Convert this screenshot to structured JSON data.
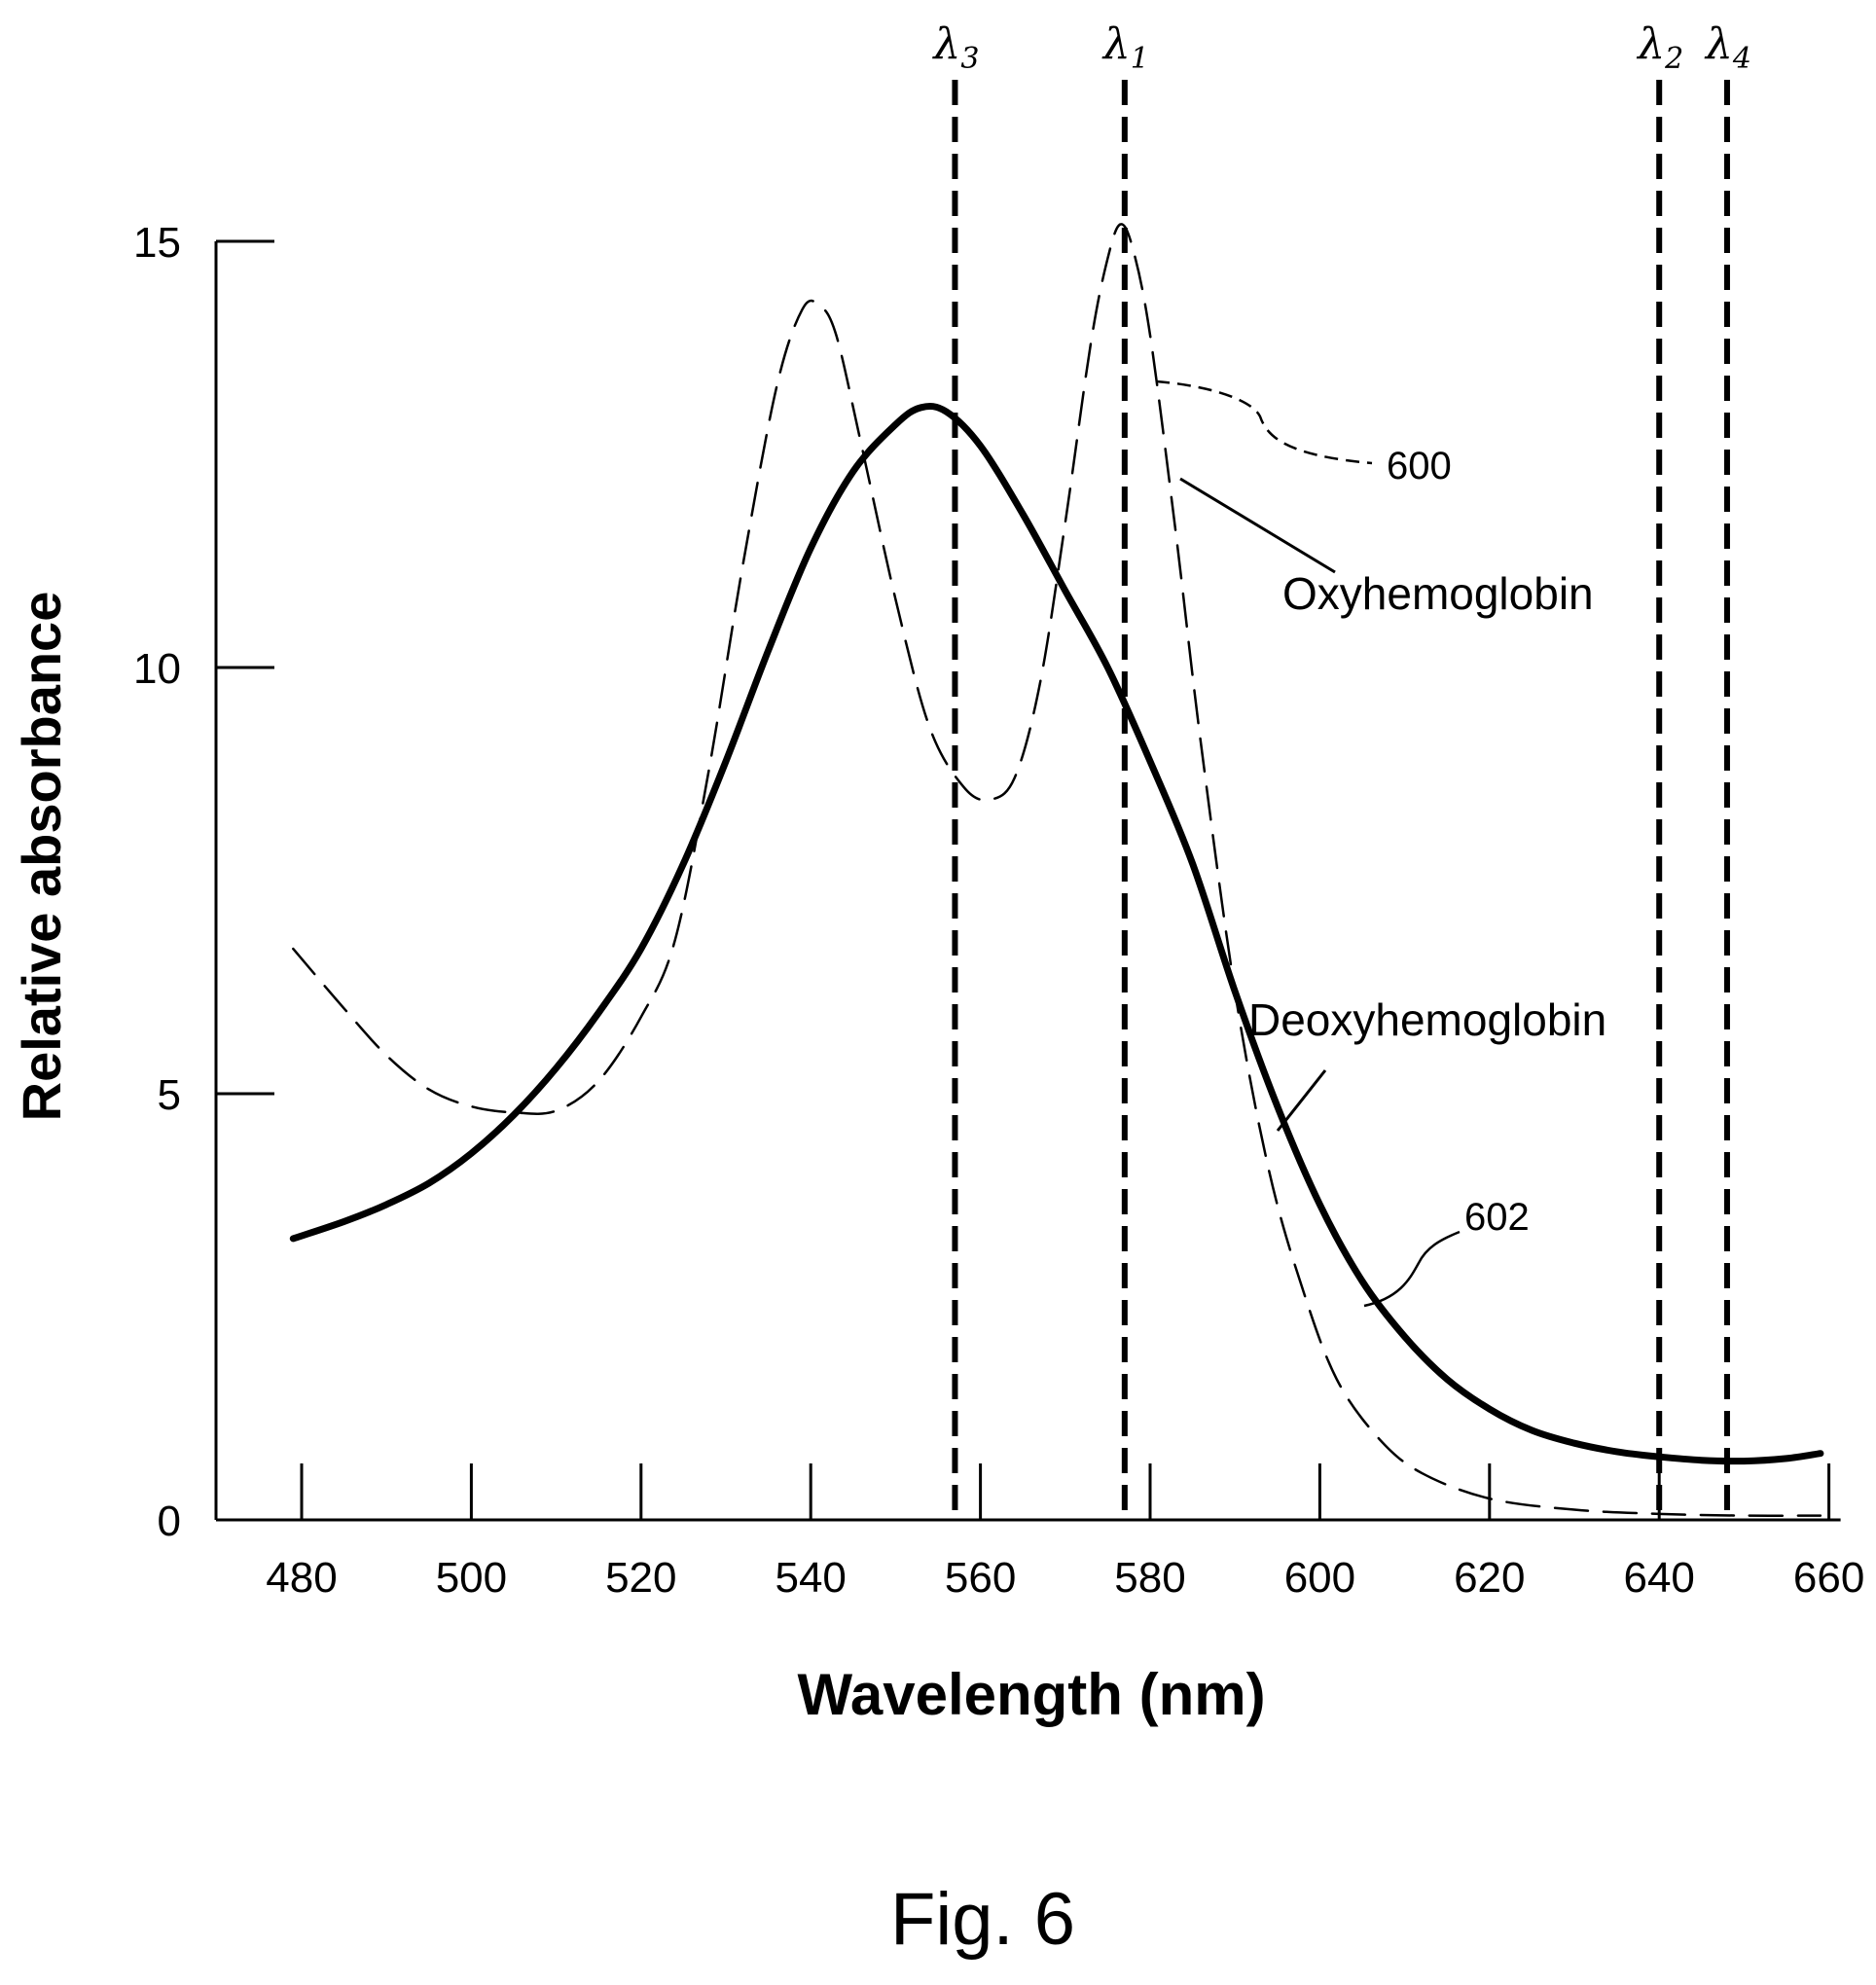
{
  "chart_data": {
    "type": "line",
    "title": "",
    "xlabel": "Wavelength (nm)",
    "ylabel": "Relative absorbance",
    "xlim": [
      470,
      660
    ],
    "ylim": [
      0,
      15
    ],
    "x_ticks": [
      480,
      500,
      520,
      540,
      560,
      580,
      600,
      620,
      640,
      660
    ],
    "y_ticks": [
      0,
      5,
      10,
      15
    ],
    "grid": false,
    "legend": "none",
    "series": [
      {
        "name": "Oxyhemoglobin",
        "style": "dashed-thin",
        "color": "#000000",
        "points": [
          [
            479,
            6.7
          ],
          [
            485,
            6.0
          ],
          [
            490,
            5.45
          ],
          [
            495,
            5.05
          ],
          [
            500,
            4.85
          ],
          [
            505,
            4.78
          ],
          [
            510,
            4.8
          ],
          [
            515,
            5.15
          ],
          [
            520,
            5.9
          ],
          [
            524,
            6.8
          ],
          [
            528,
            8.8
          ],
          [
            532,
            11.2
          ],
          [
            536,
            13.3
          ],
          [
            539,
            14.2
          ],
          [
            541,
            14.25
          ],
          [
            543,
            13.9
          ],
          [
            546,
            12.6
          ],
          [
            550,
            10.8
          ],
          [
            554,
            9.3
          ],
          [
            558,
            8.6
          ],
          [
            561,
            8.45
          ],
          [
            564,
            8.7
          ],
          [
            567,
            9.8
          ],
          [
            570,
            11.7
          ],
          [
            573,
            13.8
          ],
          [
            575,
            14.8
          ],
          [
            576.5,
            15.2
          ],
          [
            578,
            14.9
          ],
          [
            580,
            13.9
          ],
          [
            583,
            11.6
          ],
          [
            586,
            9.1
          ],
          [
            590,
            6.2
          ],
          [
            594,
            4.1
          ],
          [
            598,
            2.7
          ],
          [
            602,
            1.65
          ],
          [
            607,
            0.95
          ],
          [
            612,
            0.55
          ],
          [
            620,
            0.25
          ],
          [
            630,
            0.12
          ],
          [
            640,
            0.07
          ],
          [
            650,
            0.05
          ],
          [
            659,
            0.05
          ]
        ]
      },
      {
        "name": "Deoxyhemoglobin",
        "style": "solid-thick",
        "color": "#000000",
        "points": [
          [
            479,
            3.3
          ],
          [
            485,
            3.5
          ],
          [
            490,
            3.7
          ],
          [
            495,
            3.95
          ],
          [
            500,
            4.3
          ],
          [
            505,
            4.75
          ],
          [
            510,
            5.3
          ],
          [
            515,
            5.95
          ],
          [
            520,
            6.7
          ],
          [
            525,
            7.7
          ],
          [
            530,
            8.9
          ],
          [
            535,
            10.2
          ],
          [
            540,
            11.4
          ],
          [
            545,
            12.3
          ],
          [
            550,
            12.85
          ],
          [
            553,
            13.05
          ],
          [
            556,
            13.0
          ],
          [
            560,
            12.6
          ],
          [
            565,
            11.8
          ],
          [
            570,
            10.9
          ],
          [
            575,
            10.0
          ],
          [
            580,
            8.9
          ],
          [
            585,
            7.7
          ],
          [
            590,
            6.2
          ],
          [
            595,
            4.85
          ],
          [
            600,
            3.7
          ],
          [
            605,
            2.8
          ],
          [
            610,
            2.15
          ],
          [
            615,
            1.65
          ],
          [
            620,
            1.3
          ],
          [
            625,
            1.05
          ],
          [
            630,
            0.9
          ],
          [
            635,
            0.8
          ],
          [
            640,
            0.74
          ],
          [
            645,
            0.7
          ],
          [
            650,
            0.69
          ],
          [
            655,
            0.72
          ],
          [
            659,
            0.78
          ]
        ]
      }
    ],
    "reference_lines": [
      {
        "label": "λ",
        "sub": "3",
        "x": 557
      },
      {
        "label": "λ",
        "sub": "1",
        "x": 577
      },
      {
        "label": "λ",
        "sub": "2",
        "x": 640
      },
      {
        "label": "λ",
        "sub": "4",
        "x": 648
      }
    ],
    "annotations": {
      "oxy_label": "Oxyhemoglobin",
      "deoxy_label": "Deoxyhemoglobin",
      "ref_600": "600",
      "ref_602": "602"
    }
  },
  "figure_caption": "Fig. 6"
}
